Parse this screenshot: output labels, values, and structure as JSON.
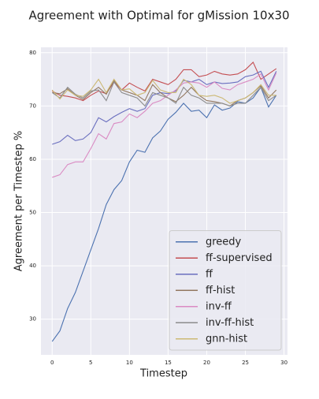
{
  "chart_data": {
    "type": "line",
    "title": "Agreement with Optimal for gMission 10x30",
    "x_label": "Timestep",
    "y_label": "Agreement per Timestep %",
    "x": [
      0,
      1,
      2,
      3,
      4,
      5,
      6,
      7,
      8,
      9,
      10,
      11,
      12,
      13,
      14,
      15,
      16,
      17,
      18,
      19,
      20,
      21,
      22,
      23,
      24,
      25,
      26,
      27,
      28,
      29
    ],
    "xlim": [
      -1.45,
      30.45
    ],
    "ylim": [
      23.3,
      81.0
    ],
    "xticks": [
      0,
      5,
      10,
      15,
      20,
      25,
      30
    ],
    "yticks": [
      30,
      40,
      50,
      60,
      70,
      80
    ],
    "grid": true,
    "legend": "lower right",
    "series": [
      {
        "name": "greedy",
        "color": "#4c72b0",
        "values": [
          25.8,
          27.8,
          32,
          35,
          39,
          43,
          47,
          51.5,
          54.3,
          56,
          59.5,
          61.7,
          61.3,
          64,
          65.3,
          67.5,
          68.8,
          70.5,
          69,
          69.2,
          67.8,
          70.2,
          69.2,
          69.6,
          70.8,
          70.5,
          71.5,
          73.5,
          69.8,
          72
        ]
      },
      {
        "name": "ff-supervised",
        "color": "#c44e52",
        "values": [
          72.8,
          72,
          71.8,
          71.5,
          71,
          72,
          72.8,
          72.3,
          74.5,
          73,
          74.3,
          73.5,
          72.8,
          75,
          74.5,
          74,
          75,
          76.8,
          76.8,
          75.5,
          75.8,
          76.5,
          76,
          75.8,
          76,
          76.8,
          78.2,
          75,
          76,
          77
        ]
      },
      {
        "name": "ff",
        "color": "#6a6fbf",
        "values": [
          62.8,
          63.3,
          64.5,
          63.5,
          63.8,
          65,
          67.8,
          67,
          68,
          68.8,
          69.5,
          69,
          69.5,
          72,
          72.5,
          72.3,
          72.8,
          74.8,
          74.5,
          75,
          74,
          74.5,
          74.2,
          74.3,
          74.5,
          75.5,
          75.8,
          76.5,
          73.5,
          76.5
        ]
      },
      {
        "name": "ff-hist",
        "color": "#937860",
        "values": [
          72.5,
          72.3,
          73.2,
          72,
          71.2,
          72.5,
          73.5,
          72.2,
          74.8,
          73,
          72.5,
          72,
          71,
          74,
          72.5,
          71.5,
          70.8,
          72,
          73.5,
          72,
          71,
          70.8,
          70.5,
          70,
          71,
          71.5,
          72.5,
          73.8,
          71.5,
          73
        ]
      },
      {
        "name": "inv-ff",
        "color": "#da8bc3",
        "values": [
          56.6,
          57.1,
          59,
          59.5,
          59.5,
          62,
          64.8,
          63.8,
          66.7,
          67,
          68.5,
          67.8,
          69,
          70.5,
          71,
          72,
          73,
          74.3,
          74.5,
          74.3,
          73.5,
          74.5,
          73.3,
          73,
          74,
          74.5,
          75,
          76,
          73,
          76.2
        ]
      },
      {
        "name": "inv-ff-hist",
        "color": "#8c8c8c",
        "values": [
          72.5,
          71.5,
          73.5,
          72.2,
          71.5,
          72.8,
          73,
          71,
          74.5,
          72.5,
          72,
          71.5,
          70,
          72.5,
          72,
          71.5,
          70.5,
          73.5,
          72,
          71.5,
          70.5,
          70.5,
          70.5,
          70,
          70.5,
          70.5,
          72,
          73.5,
          71,
          72
        ]
      },
      {
        "name": "gnn-hist",
        "color": "#ccb974",
        "values": [
          73,
          71.3,
          73,
          72,
          71.8,
          73,
          75,
          72.5,
          75,
          73,
          73.2,
          72,
          72.5,
          74.8,
          73,
          72.5,
          72.5,
          75,
          74,
          72,
          71.8,
          72,
          71.5,
          70.5,
          71,
          71.5,
          72.5,
          74,
          72,
          72
        ]
      }
    ]
  }
}
